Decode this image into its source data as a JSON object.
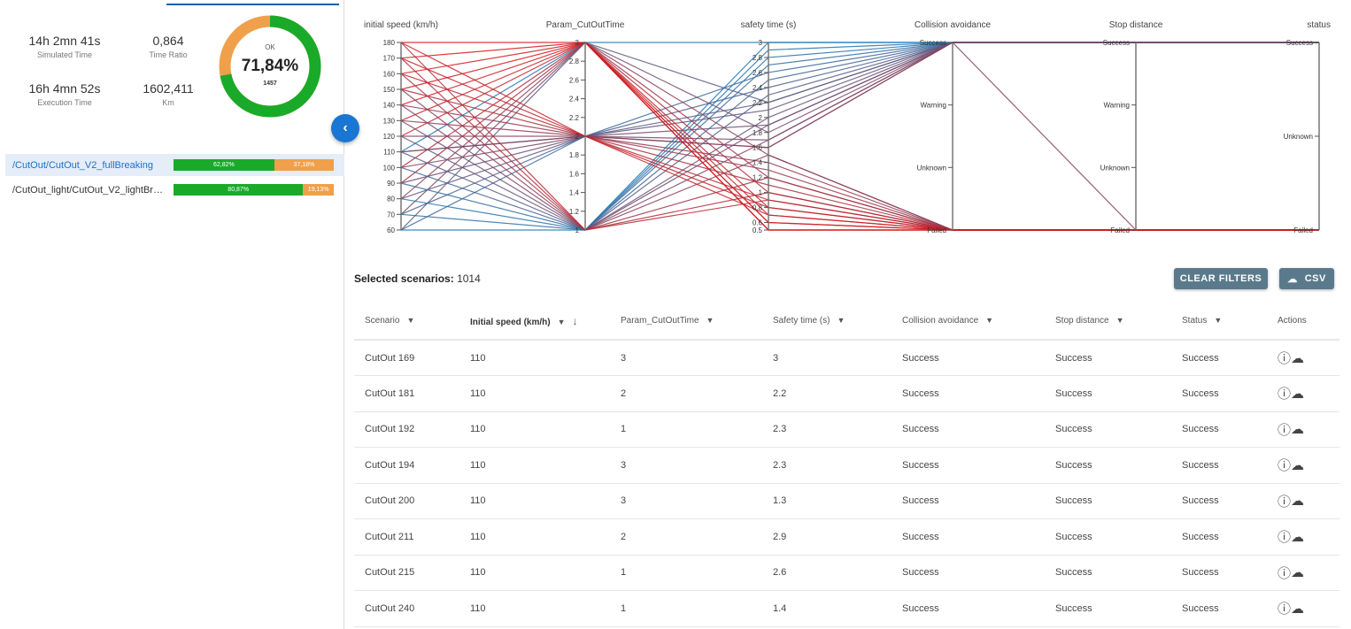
{
  "stats": {
    "simulated_time": "14h 2mn 41s",
    "simulated_time_label": "Simulated Time",
    "time_ratio": "0,864",
    "time_ratio_label": "Time Ratio",
    "execution_time": "16h 4mn 52s",
    "execution_time_label": "Execution Time",
    "km": "1602,411",
    "km_label": "Km"
  },
  "donut": {
    "label": "OK",
    "percent": "71,84%",
    "count": "1457",
    "ok_fraction": 0.7184,
    "colors": {
      "ok": "#1aaa2a",
      "other": "#f0a04a"
    }
  },
  "projects": [
    {
      "name": "/CutOut/CutOut_V2_fullBreaking",
      "ok": "62,82%",
      "ko": "37,18%",
      "ok_fraction": 0.6282,
      "selected": true
    },
    {
      "name": "/CutOut_light/CutOut_V2_lightBreak...",
      "ok": "80,87%",
      "ko": "19,13%",
      "ok_fraction": 0.8087,
      "selected": false
    }
  ],
  "chart_data": {
    "type": "parallel-coordinates",
    "axes": [
      {
        "label": "initial speed (km/h)",
        "kind": "linear",
        "range": [
          60,
          180
        ],
        "ticks": [
          60,
          70,
          80,
          90,
          100,
          110,
          120,
          130,
          140,
          150,
          160,
          170,
          180
        ]
      },
      {
        "label": "Param_CutOutTime",
        "kind": "linear",
        "range": [
          1,
          3
        ],
        "ticks": [
          1,
          1.2,
          1.4,
          1.6,
          1.8,
          2,
          2.2,
          2.4,
          2.6,
          2.8,
          3
        ]
      },
      {
        "label": "safety time (s)",
        "kind": "linear",
        "range": [
          0.5,
          3
        ],
        "ticks": [
          0.5,
          0.6,
          0.8,
          1,
          1.2,
          1.4,
          1.6,
          1.8,
          2,
          2.2,
          2.4,
          2.6,
          2.8,
          3
        ]
      },
      {
        "label": "Collision avoidance",
        "kind": "category",
        "categories": [
          "Failed",
          "Unknown",
          "Warning",
          "Success"
        ]
      },
      {
        "label": "Stop distance",
        "kind": "category",
        "categories": [
          "Failed",
          "Unknown",
          "Warning",
          "Success"
        ]
      },
      {
        "label": "status",
        "kind": "category",
        "categories": [
          "Failed",
          "Unknown",
          "Success"
        ]
      }
    ],
    "color_scale": {
      "low": "#d7191c",
      "high": "#1f78b4",
      "by": "safety time (s)"
    },
    "rows": [
      [
        60,
        1,
        3,
        "Success",
        "Success",
        "Success"
      ],
      [
        60,
        2,
        2.6,
        "Success",
        "Success",
        "Success"
      ],
      [
        60,
        3,
        2.2,
        "Success",
        "Success",
        "Success"
      ],
      [
        70,
        1,
        2.8,
        "Success",
        "Success",
        "Success"
      ],
      [
        70,
        2,
        2.4,
        "Success",
        "Success",
        "Success"
      ],
      [
        70,
        3,
        1.8,
        "Success",
        "Success",
        "Success"
      ],
      [
        80,
        1,
        2.9,
        "Success",
        "Success",
        "Success"
      ],
      [
        80,
        2,
        2.1,
        "Success",
        "Success",
        "Success"
      ],
      [
        80,
        3,
        1.5,
        "Failed",
        "Failed",
        "Failed"
      ],
      [
        90,
        1,
        2.7,
        "Success",
        "Success",
        "Success"
      ],
      [
        90,
        2,
        1.9,
        "Success",
        "Success",
        "Success"
      ],
      [
        90,
        3,
        1.2,
        "Failed",
        "Failed",
        "Failed"
      ],
      [
        100,
        1,
        2.5,
        "Success",
        "Success",
        "Success"
      ],
      [
        100,
        2,
        1.7,
        "Success",
        "Success",
        "Success"
      ],
      [
        100,
        3,
        1.0,
        "Failed",
        "Failed",
        "Failed"
      ],
      [
        110,
        1,
        2.3,
        "Success",
        "Success",
        "Success"
      ],
      [
        110,
        2,
        2.2,
        "Success",
        "Success",
        "Success"
      ],
      [
        110,
        3,
        3,
        "Success",
        "Success",
        "Success"
      ],
      [
        110,
        2,
        1.6,
        "Success",
        "Failed",
        "Failed"
      ],
      [
        120,
        1,
        2.0,
        "Success",
        "Success",
        "Success"
      ],
      [
        120,
        2,
        1.6,
        "Success",
        "Success",
        "Success"
      ],
      [
        120,
        3,
        0.8,
        "Failed",
        "Failed",
        "Failed"
      ],
      [
        130,
        1,
        1.9,
        "Success",
        "Success",
        "Success"
      ],
      [
        130,
        2,
        1.4,
        "Failed",
        "Failed",
        "Failed"
      ],
      [
        130,
        3,
        0.7,
        "Failed",
        "Failed",
        "Failed"
      ],
      [
        140,
        1,
        1.7,
        "Success",
        "Success",
        "Success"
      ],
      [
        140,
        2,
        1.3,
        "Failed",
        "Failed",
        "Failed"
      ],
      [
        140,
        3,
        0.6,
        "Failed",
        "Failed",
        "Failed"
      ],
      [
        150,
        1,
        1.5,
        "Failed",
        "Failed",
        "Failed"
      ],
      [
        150,
        2,
        1.1,
        "Failed",
        "Failed",
        "Failed"
      ],
      [
        150,
        3,
        0.5,
        "Failed",
        "Failed",
        "Failed"
      ],
      [
        160,
        1,
        1.2,
        "Failed",
        "Failed",
        "Failed"
      ],
      [
        160,
        2,
        0.9,
        "Failed",
        "Failed",
        "Failed"
      ],
      [
        160,
        3,
        0.6,
        "Failed",
        "Failed",
        "Failed"
      ],
      [
        170,
        1,
        1.0,
        "Failed",
        "Failed",
        "Failed"
      ],
      [
        170,
        2,
        0.8,
        "Failed",
        "Failed",
        "Failed"
      ],
      [
        170,
        3,
        0.5,
        "Failed",
        "Failed",
        "Failed"
      ],
      [
        180,
        1,
        0.9,
        "Failed",
        "Failed",
        "Failed"
      ],
      [
        180,
        2,
        0.7,
        "Failed",
        "Failed",
        "Failed"
      ],
      [
        180,
        3,
        0.5,
        "Failed",
        "Failed",
        "Failed"
      ]
    ]
  },
  "selection": {
    "label": "Selected scenarios:",
    "count": "1014"
  },
  "buttons": {
    "clear_filters": "CLEAR FILTERS",
    "csv": "CSV"
  },
  "table": {
    "columns": [
      "Scenario",
      "Initial speed (km/h)",
      "Param_CutOutTime",
      "Safety time (s)",
      "Collision avoidance",
      "Stop distance",
      "Status",
      "Actions"
    ],
    "rows": [
      [
        "CutOut 169",
        "110",
        "3",
        "3",
        "Success",
        "Success",
        "Success"
      ],
      [
        "CutOut 181",
        "110",
        "2",
        "2.2",
        "Success",
        "Success",
        "Success"
      ],
      [
        "CutOut 192",
        "110",
        "1",
        "2.3",
        "Success",
        "Success",
        "Success"
      ],
      [
        "CutOut 194",
        "110",
        "3",
        "2.3",
        "Success",
        "Success",
        "Success"
      ],
      [
        "CutOut 200",
        "110",
        "3",
        "1.3",
        "Success",
        "Success",
        "Success"
      ],
      [
        "CutOut 211",
        "110",
        "2",
        "2.9",
        "Success",
        "Success",
        "Success"
      ],
      [
        "CutOut 215",
        "110",
        "1",
        "2.6",
        "Success",
        "Success",
        "Success"
      ],
      [
        "CutOut 240",
        "110",
        "1",
        "1.4",
        "Success",
        "Success",
        "Success"
      ]
    ]
  }
}
